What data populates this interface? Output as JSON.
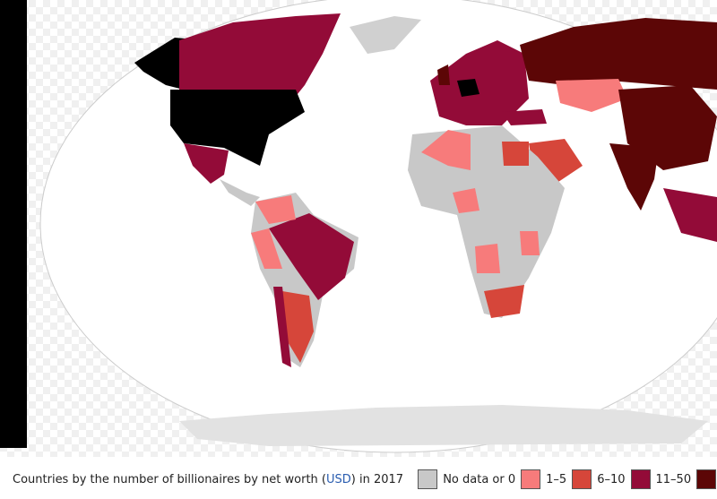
{
  "caption": {
    "before": "Countries by the number of billionaires by net worth (",
    "link": "USD",
    "after": ") in 2017"
  },
  "legend": [
    {
      "label": "No data or 0",
      "color": "#c8c8c8"
    },
    {
      "label": "1–5",
      "color": "#f77b7b"
    },
    {
      "label": "6–10",
      "color": "#d6463a"
    },
    {
      "label": "11–50",
      "color": "#930b38"
    },
    {
      "color": "#5c0606"
    }
  ]
}
